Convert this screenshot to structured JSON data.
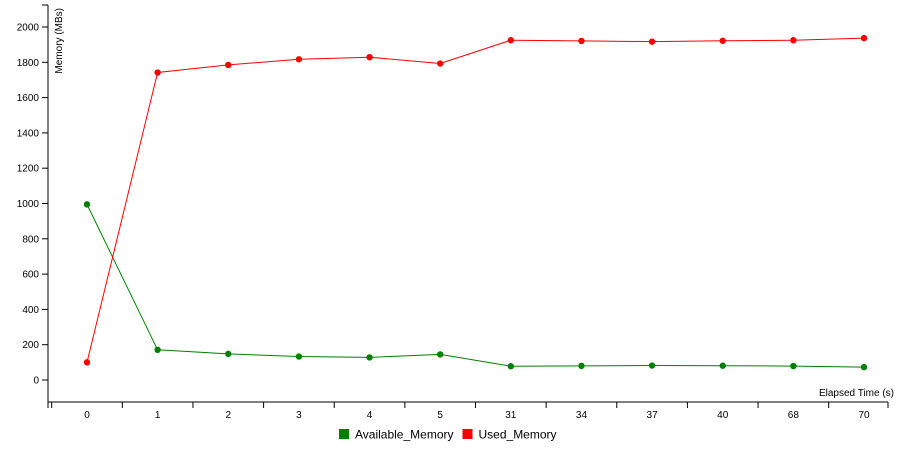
{
  "chart_data": {
    "type": "line",
    "xlabel": "Elapsed Time (s)",
    "ylabel": "Memory (MBs)",
    "categories": [
      "0",
      "1",
      "2",
      "3",
      "4",
      "5",
      "31",
      "34",
      "37",
      "40",
      "68",
      "70"
    ],
    "ylim": [
      -120,
      2130
    ],
    "yticks": [
      0,
      200,
      400,
      600,
      800,
      1000,
      1200,
      1400,
      1600,
      1800,
      2000
    ],
    "grid": false,
    "legend_position": "bottom-center",
    "series": [
      {
        "name": "Available_Memory",
        "color": "#008000",
        "values": [
          995,
          171,
          148,
          133,
          128,
          145,
          78,
          80,
          82,
          81,
          79,
          73
        ]
      },
      {
        "name": "Used_Memory",
        "color": "#ff0000",
        "values": [
          100,
          1742,
          1785,
          1817,
          1829,
          1793,
          1925,
          1921,
          1917,
          1922,
          1925,
          1937
        ]
      }
    ]
  }
}
